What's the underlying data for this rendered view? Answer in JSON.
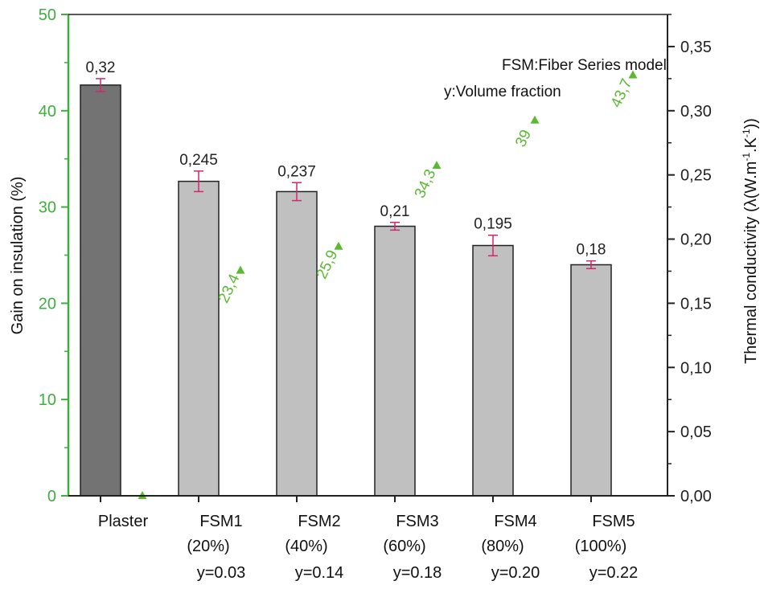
{
  "chart_data": {
    "type": "bar",
    "categories": [
      {
        "name": "Plaster",
        "pct": "",
        "y": ""
      },
      {
        "name": "FSM1",
        "pct": "(20%)",
        "y": "y=0.03"
      },
      {
        "name": "FSM2",
        "pct": "(40%)",
        "y": "y=0.14"
      },
      {
        "name": "FSM3",
        "pct": "(60%)",
        "y": "y=0.18"
      },
      {
        "name": "FSM4",
        "pct": "(80%)",
        "y": "y=0.20"
      },
      {
        "name": "FSM5",
        "pct": "(100%)",
        "y": "y=0.22"
      }
    ],
    "thermal_conductivity": {
      "values": [
        0.32,
        0.245,
        0.237,
        0.21,
        0.195,
        0.18
      ],
      "labels": [
        "0,32",
        "0,245",
        "0,237",
        "0,21",
        "0,195",
        "0,18"
      ],
      "errors": [
        0.005,
        0.008,
        0.007,
        0.003,
        0.008,
        0.003
      ],
      "colors": [
        "#737373",
        "#c0c0c0",
        "#c0c0c0",
        "#c0c0c0",
        "#c0c0c0",
        "#c0c0c0"
      ]
    },
    "gain_on_insulation": {
      "values": [
        0,
        23.4,
        25.9,
        34.3,
        39,
        43.7
      ],
      "labels": [
        "",
        "23,4",
        "25,9",
        "34,3",
        "39",
        "43,7"
      ],
      "color": "#5cb832"
    },
    "error_bar_color": "#d6246e",
    "left_axis": {
      "title": "Gain on insulation  (%)",
      "range": [
        0,
        50
      ],
      "ticks": [
        0,
        10,
        20,
        30,
        40,
        50
      ],
      "tick_labels": [
        "0",
        "10",
        "20",
        "30",
        "40",
        "50"
      ],
      "color": "#3fae3f"
    },
    "right_axis": {
      "title_main": "Thermal conductivity (λ(W.m",
      "sup1": "-1",
      "title_mid": ".K",
      "sup2": "-1",
      "title_end": "))",
      "range": [
        0,
        0.375
      ],
      "ticks": [
        0,
        0.05,
        0.1,
        0.15,
        0.2,
        0.25,
        0.3,
        0.35
      ],
      "tick_labels": [
        "0,00",
        "0,05",
        "0,10",
        "0,15",
        "0,20",
        "0,25",
        "0,30",
        "0,35"
      ]
    },
    "annotations": [
      "FSM:Fiber Series model",
      "y:Volume fraction"
    ],
    "legend": "top-right"
  }
}
